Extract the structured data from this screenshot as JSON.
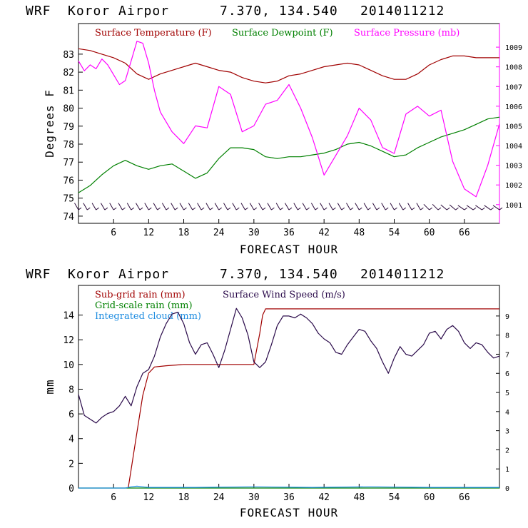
{
  "header": {
    "model": "WRF",
    "station": "Koror Airpor",
    "coords": "7.370, 134.540",
    "init": "2014011212"
  },
  "colors": {
    "temperature": "#a00000",
    "dewpoint": "#008000",
    "pressure": "#ff00ff",
    "wind_barb": "#2a0a3a",
    "subgrid_rain": "#a00000",
    "wind_speed": "#2a0a4a",
    "grid_rain": "#008000",
    "cloud": "#1e8ce0"
  },
  "chart_data": [
    {
      "type": "line",
      "title": "WRF  Koror Airpor  7.370, 134.540  2014011212",
      "xlabel": "FORECAST HOUR",
      "ylabel": "Degrees F",
      "xlim": [
        0,
        72
      ],
      "ylim": [
        73.6,
        84.7
      ],
      "xticks": [
        6,
        12,
        18,
        24,
        30,
        36,
        42,
        48,
        54,
        60,
        66
      ],
      "yticks": [
        74,
        75,
        76,
        77,
        78,
        79,
        80,
        81,
        82,
        83
      ],
      "y2label": "Surface Pressure (mb)",
      "y2lim": [
        1000.05,
        1010.2
      ],
      "y2ticks": [
        1001,
        1002,
        1003,
        1004,
        1005,
        1006,
        1007,
        1008,
        1009
      ],
      "legend": [
        "Surface Temperature (F)",
        "Surface Dewpoint (F)",
        "Surface Pressure (mb)"
      ],
      "series": [
        {
          "name": "Surface Temperature (F)",
          "axis": "left",
          "x": [
            0,
            2,
            4,
            6,
            8,
            10,
            12,
            14,
            16,
            18,
            20,
            22,
            24,
            26,
            28,
            30,
            32,
            34,
            36,
            38,
            40,
            42,
            44,
            46,
            48,
            50,
            52,
            54,
            56,
            58,
            60,
            62,
            64,
            66,
            68,
            70,
            72
          ],
          "y": [
            83.3,
            83.2,
            83.0,
            82.8,
            82.5,
            81.9,
            81.6,
            81.9,
            82.1,
            82.3,
            82.5,
            82.3,
            82.1,
            82.0,
            81.7,
            81.5,
            81.4,
            81.5,
            81.8,
            81.9,
            82.1,
            82.3,
            82.4,
            82.5,
            82.4,
            82.1,
            81.8,
            81.6,
            81.6,
            81.9,
            82.4,
            82.7,
            82.9,
            82.9,
            82.8,
            82.8,
            82.8
          ]
        },
        {
          "name": "Surface Dewpoint (F)",
          "axis": "left",
          "x": [
            0,
            2,
            4,
            6,
            8,
            10,
            12,
            14,
            16,
            18,
            20,
            22,
            24,
            26,
            28,
            30,
            32,
            34,
            36,
            38,
            40,
            42,
            44,
            46,
            48,
            50,
            52,
            54,
            56,
            58,
            60,
            62,
            64,
            66,
            68,
            70,
            72
          ],
          "y": [
            75.3,
            75.7,
            76.3,
            76.8,
            77.1,
            76.8,
            76.6,
            76.8,
            76.9,
            76.5,
            76.1,
            76.4,
            77.2,
            77.8,
            77.8,
            77.7,
            77.3,
            77.2,
            77.3,
            77.3,
            77.4,
            77.5,
            77.7,
            78.0,
            78.1,
            77.9,
            77.6,
            77.3,
            77.4,
            77.8,
            78.1,
            78.4,
            78.6,
            78.8,
            79.1,
            79.4,
            79.5
          ]
        },
        {
          "name": "Surface Pressure (mb)",
          "axis": "right",
          "x": [
            0,
            1,
            2,
            3,
            4,
            5,
            6,
            7,
            8,
            9,
            10,
            11,
            12,
            13,
            14,
            16,
            18,
            20,
            22,
            24,
            26,
            28,
            30,
            32,
            34,
            36,
            38,
            40,
            42,
            44,
            46,
            48,
            50,
            52,
            54,
            56,
            58,
            60,
            62,
            64,
            66,
            68,
            70,
            72
          ],
          "y": [
            1008.3,
            1007.8,
            1008.1,
            1007.9,
            1008.4,
            1008.1,
            1007.6,
            1007.1,
            1007.3,
            1008.3,
            1009.3,
            1009.2,
            1008.2,
            1006.8,
            1005.7,
            1004.7,
            1004.1,
            1005.0,
            1004.9,
            1007.0,
            1006.6,
            1004.7,
            1005.0,
            1006.1,
            1006.3,
            1007.1,
            1005.9,
            1004.4,
            1002.5,
            1003.5,
            1004.5,
            1005.9,
            1005.3,
            1003.9,
            1003.6,
            1005.6,
            1006.0,
            1005.5,
            1005.8,
            1003.2,
            1001.8,
            1001.4,
            1003.0,
            1005.1
          ]
        }
      ],
      "wind_barbs": {
        "hours": [
          0,
          1.5,
          3,
          4.5,
          6,
          7.5,
          9,
          10.5,
          12,
          13.5,
          15,
          16.5,
          18,
          19.5,
          21,
          22.5,
          24,
          25.5,
          27,
          28.5,
          30,
          31.5,
          33,
          34.5,
          36,
          37.5,
          39,
          40.5,
          42,
          43.5,
          45,
          46.5,
          48,
          49.5,
          51,
          52.5,
          54,
          55.5,
          57,
          58.5,
          60,
          61.5,
          63,
          64.5,
          66,
          67.5,
          69,
          70.5,
          72
        ],
        "direction_deg": [
          60,
          60,
          60,
          60,
          60,
          60,
          60,
          60,
          60,
          60,
          60,
          60,
          60,
          60,
          60,
          60,
          60,
          60,
          60,
          60,
          60,
          60,
          60,
          60,
          60,
          60,
          60,
          60,
          60,
          60,
          60,
          60,
          60,
          60,
          60,
          60,
          60,
          60,
          60,
          60,
          45,
          45,
          40,
          40,
          35,
          35,
          35,
          35,
          35
        ]
      }
    },
    {
      "type": "line",
      "title": "WRF  Koror Airpor  7.370, 134.540  2014011212",
      "xlabel": "FORECAST HOUR",
      "ylabel": "mm",
      "xlim": [
        0,
        72
      ],
      "ylim": [
        0,
        16.4
      ],
      "xticks": [
        6,
        12,
        18,
        24,
        30,
        36,
        42,
        48,
        54,
        60,
        66
      ],
      "yticks": [
        0,
        2,
        4,
        6,
        8,
        10,
        12,
        14
      ],
      "y2label": "Surface Wind Speed (m/s)",
      "y2lim": [
        0,
        10.6
      ],
      "y2ticks": [
        0,
        1,
        2,
        3,
        4,
        5,
        6,
        7,
        8,
        9
      ],
      "legend": [
        "Sub-grid rain (mm)",
        "Grid-scale rain (mm)",
        "Integrated cloud (mm)",
        "Surface Wind Speed (m/s)"
      ],
      "series": [
        {
          "name": "Sub-grid rain (mm)",
          "axis": "left",
          "x": [
            0,
            8.5,
            9,
            10,
            11,
            12,
            13,
            15,
            18,
            24,
            30,
            31,
            31.5,
            32,
            36,
            48,
            60,
            72
          ],
          "y": [
            null,
            0,
            1.5,
            4.5,
            7.5,
            9.3,
            9.8,
            9.9,
            10.0,
            10.0,
            10.0,
            12.5,
            14.0,
            14.5,
            14.5,
            14.5,
            14.5,
            14.5
          ]
        },
        {
          "name": "Grid-scale rain (mm)",
          "axis": "left",
          "x": [
            0,
            72
          ],
          "y": [
            0,
            0
          ]
        },
        {
          "name": "Integrated cloud (mm)",
          "axis": "left",
          "x": [
            0,
            8,
            9,
            10,
            11,
            12,
            20,
            30,
            40,
            50,
            60,
            72
          ],
          "y": [
            0,
            0,
            0.1,
            0.15,
            0.1,
            0.05,
            0.05,
            0.1,
            0.05,
            0.1,
            0.05,
            0.05
          ]
        },
        {
          "name": "Surface Wind Speed (m/s)",
          "axis": "right",
          "x": [
            0,
            1,
            2,
            3,
            4,
            5,
            6,
            7,
            8,
            9,
            10,
            11,
            12,
            13,
            14,
            15,
            16,
            17,
            18,
            19,
            20,
            21,
            22,
            23,
            24,
            25,
            26,
            27,
            28,
            29,
            30,
            31,
            32,
            33,
            34,
            35,
            36,
            37,
            38,
            39,
            40,
            41,
            42,
            43,
            44,
            45,
            46,
            47,
            48,
            49,
            50,
            51,
            52,
            53,
            54,
            55,
            56,
            57,
            58,
            59,
            60,
            61,
            62,
            63,
            64,
            65,
            66,
            67,
            68,
            69,
            70,
            71,
            72
          ],
          "y": [
            4.9,
            3.8,
            3.6,
            3.4,
            3.7,
            3.9,
            4.0,
            4.3,
            4.8,
            4.3,
            5.3,
            6.0,
            6.2,
            6.9,
            7.9,
            8.6,
            9.1,
            9.2,
            8.6,
            7.6,
            7.0,
            7.5,
            7.6,
            7.0,
            6.3,
            7.2,
            8.3,
            9.4,
            8.9,
            8.0,
            6.6,
            6.3,
            6.6,
            7.5,
            8.5,
            9.0,
            9.0,
            8.9,
            9.1,
            8.9,
            8.6,
            8.1,
            7.8,
            7.6,
            7.1,
            7.0,
            7.5,
            7.9,
            8.3,
            8.2,
            7.7,
            7.3,
            6.6,
            6.0,
            6.8,
            7.4,
            7.0,
            6.9,
            7.2,
            7.5,
            8.1,
            8.2,
            7.8,
            8.3,
            8.5,
            8.2,
            7.6,
            7.3,
            7.6,
            7.5,
            7.1,
            6.8,
            6.9
          ]
        }
      ]
    }
  ]
}
